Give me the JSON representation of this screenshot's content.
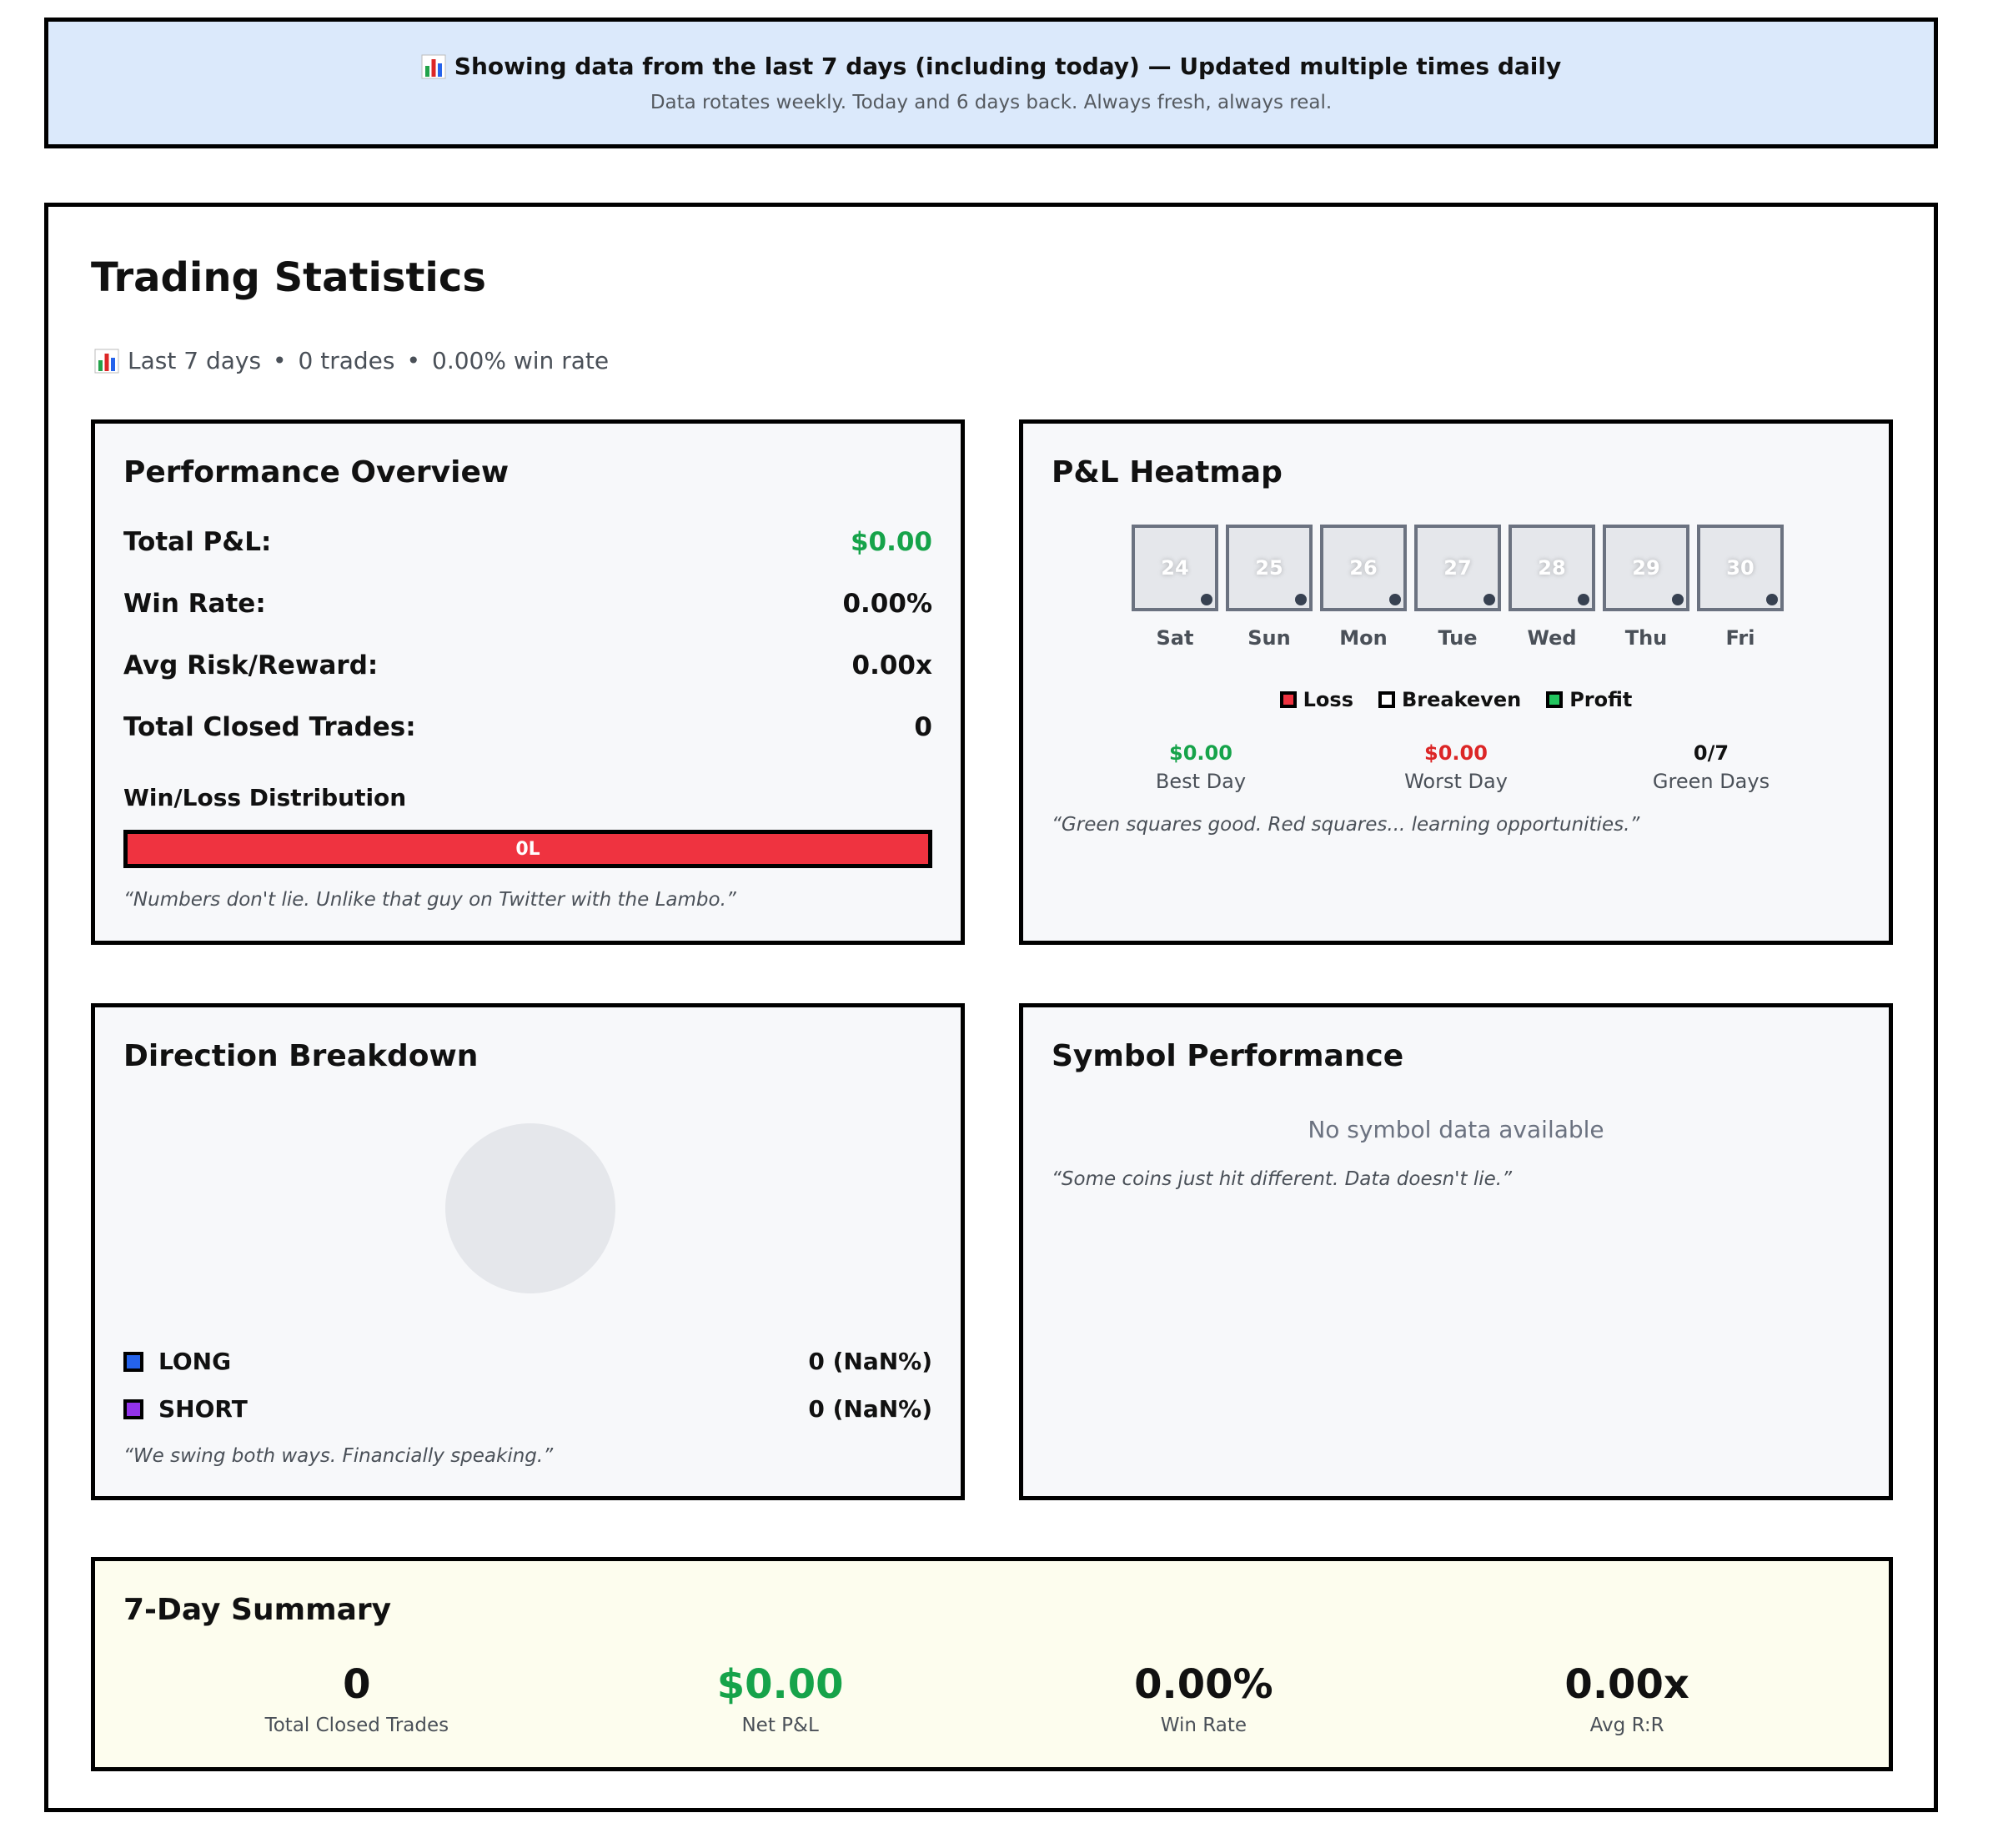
{
  "banner": {
    "icon": "bar-chart-icon",
    "prefix": "Showing data from the",
    "highlight": "last 7 days",
    "suffix": "(including today) — Updated multiple times daily",
    "subtitle": "Data rotates weekly. Today and 6 days back. Always fresh, always real."
  },
  "header": {
    "title": "Trading Statistics",
    "period": "Last 7 days",
    "trades": "0 trades",
    "win_rate": "0.00% win rate",
    "separator": "•"
  },
  "performance": {
    "title": "Performance Overview",
    "rows": [
      {
        "label": "Total P&L:",
        "value": "$0.00"
      },
      {
        "label": "Win Rate:",
        "value": "0.00%"
      },
      {
        "label": "Avg Risk/Reward:",
        "value": "0.00x"
      },
      {
        "label": "Total Closed Trades:",
        "value": "0"
      }
    ],
    "distribution_label": "Win/Loss Distribution",
    "distribution_bar": "0L",
    "loss_fraction": 1.0,
    "quote": "“Numbers don't lie. Unlike that guy on Twitter with the Lambo.”"
  },
  "heatmap": {
    "title": "P&L Heatmap",
    "days": [
      {
        "date": "24",
        "weekday": "Sat"
      },
      {
        "date": "25",
        "weekday": "Sun"
      },
      {
        "date": "26",
        "weekday": "Mon"
      },
      {
        "date": "27",
        "weekday": "Tue"
      },
      {
        "date": "28",
        "weekday": "Wed"
      },
      {
        "date": "29",
        "weekday": "Thu"
      },
      {
        "date": "30",
        "weekday": "Fri"
      }
    ],
    "legend": {
      "loss": "Loss",
      "breakeven": "Breakeven",
      "profit": "Profit"
    },
    "best_day": {
      "value": "$0.00",
      "label": "Best Day"
    },
    "worst_day": {
      "value": "$0.00",
      "label": "Worst Day"
    },
    "green_days": {
      "value": "0/7",
      "label": "Green Days"
    },
    "quote": "“Green squares good. Red squares... learning opportunities.”"
  },
  "direction": {
    "title": "Direction Breakdown",
    "long": {
      "label": "LONG",
      "value": "0 (NaN%)"
    },
    "short": {
      "label": "SHORT",
      "value": "0 (NaN%)"
    },
    "quote": "“We swing both ways. Financially speaking.”"
  },
  "symbols": {
    "title": "Symbol Performance",
    "empty": "No symbol data available",
    "quote": "“Some coins just hit different. Data doesn't lie.”"
  },
  "summary": {
    "title": "7-Day Summary",
    "items": [
      {
        "value": "0",
        "label": "Total Closed Trades"
      },
      {
        "value": "$0.00",
        "label": "Net P&L"
      },
      {
        "value": "0.00%",
        "label": "Win Rate"
      },
      {
        "value": "0.00x",
        "label": "Avg R:R"
      }
    ]
  },
  "colors": {
    "profit": "#16a34a",
    "loss": "#ef3340",
    "long": "#2563eb",
    "short": "#9333ea",
    "banner_bg": "#dbe9fb",
    "summary_bg": "#fdfdee"
  }
}
